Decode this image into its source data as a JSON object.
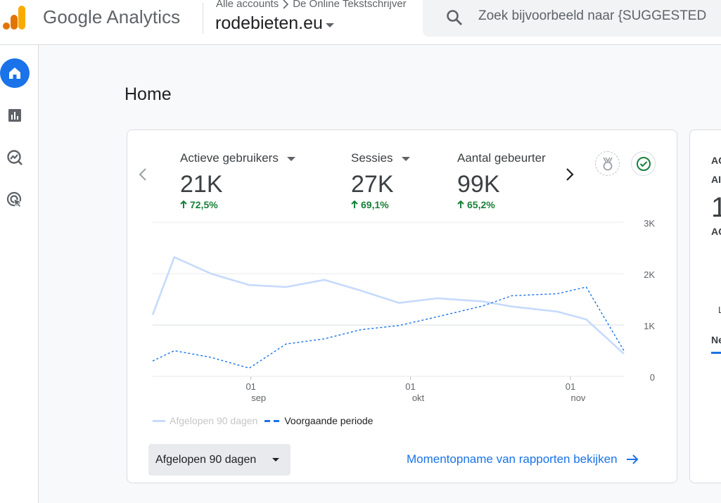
{
  "header": {
    "product_name": "Google Analytics",
    "account_path": [
      "Alle accounts",
      "De Online Tekstschrijver"
    ],
    "property": "rodebieten.eu",
    "search_placeholder": "Zoek bijvoorbeeld naar {SUGGESTED"
  },
  "rail": {
    "items": [
      {
        "icon": "home-icon",
        "active": true
      },
      {
        "icon": "bar-chart-icon",
        "active": false
      },
      {
        "icon": "explore-icon",
        "active": false
      },
      {
        "icon": "advertising-icon",
        "active": false
      }
    ]
  },
  "page_title": "Home",
  "metrics": [
    {
      "label": "Actieve gebruikers",
      "value": "21K",
      "change": "72,5%"
    },
    {
      "label": "Sessies",
      "value": "27K",
      "change": "69,1%"
    },
    {
      "label": "Aantal gebeurter",
      "value": "99K",
      "change": "65,2%"
    }
  ],
  "colors": {
    "accent": "#1a73e8",
    "positive": "#188038",
    "current_series": "#c6dafc",
    "previous_series": "#1a73e8"
  },
  "chart_data": {
    "type": "line",
    "y_ticks": [
      "3K",
      "2K",
      "1K",
      "0"
    ],
    "ylim": [
      0,
      3000
    ],
    "x_ticks": [
      {
        "day": "01",
        "month": "sep"
      },
      {
        "day": "01",
        "month": "okt"
      },
      {
        "day": "01",
        "month": "nov"
      }
    ],
    "series": [
      {
        "name": "Afgelopen 90 dagen",
        "style": "solid",
        "values": [
          1200,
          2320,
          2000,
          1780,
          1740,
          1880,
          1670,
          1430,
          1520,
          1460,
          1360,
          1260,
          1110,
          440
        ]
      },
      {
        "name": "Voorgaande periode",
        "style": "dashed",
        "values": [
          300,
          500,
          370,
          160,
          630,
          730,
          910,
          990,
          1160,
          1370,
          1570,
          1610,
          1740,
          500
        ]
      }
    ],
    "legend": [
      "Afgelopen 90 dagen",
      "Voorgaande periode"
    ]
  },
  "range_select": "Afgelopen 90 dagen",
  "snapshot_link": "Momentopname van rapporten bekijken",
  "card2": {
    "lines": [
      "AC",
      "AI",
      "1",
      "AC",
      "L",
      "Ne"
    ]
  }
}
